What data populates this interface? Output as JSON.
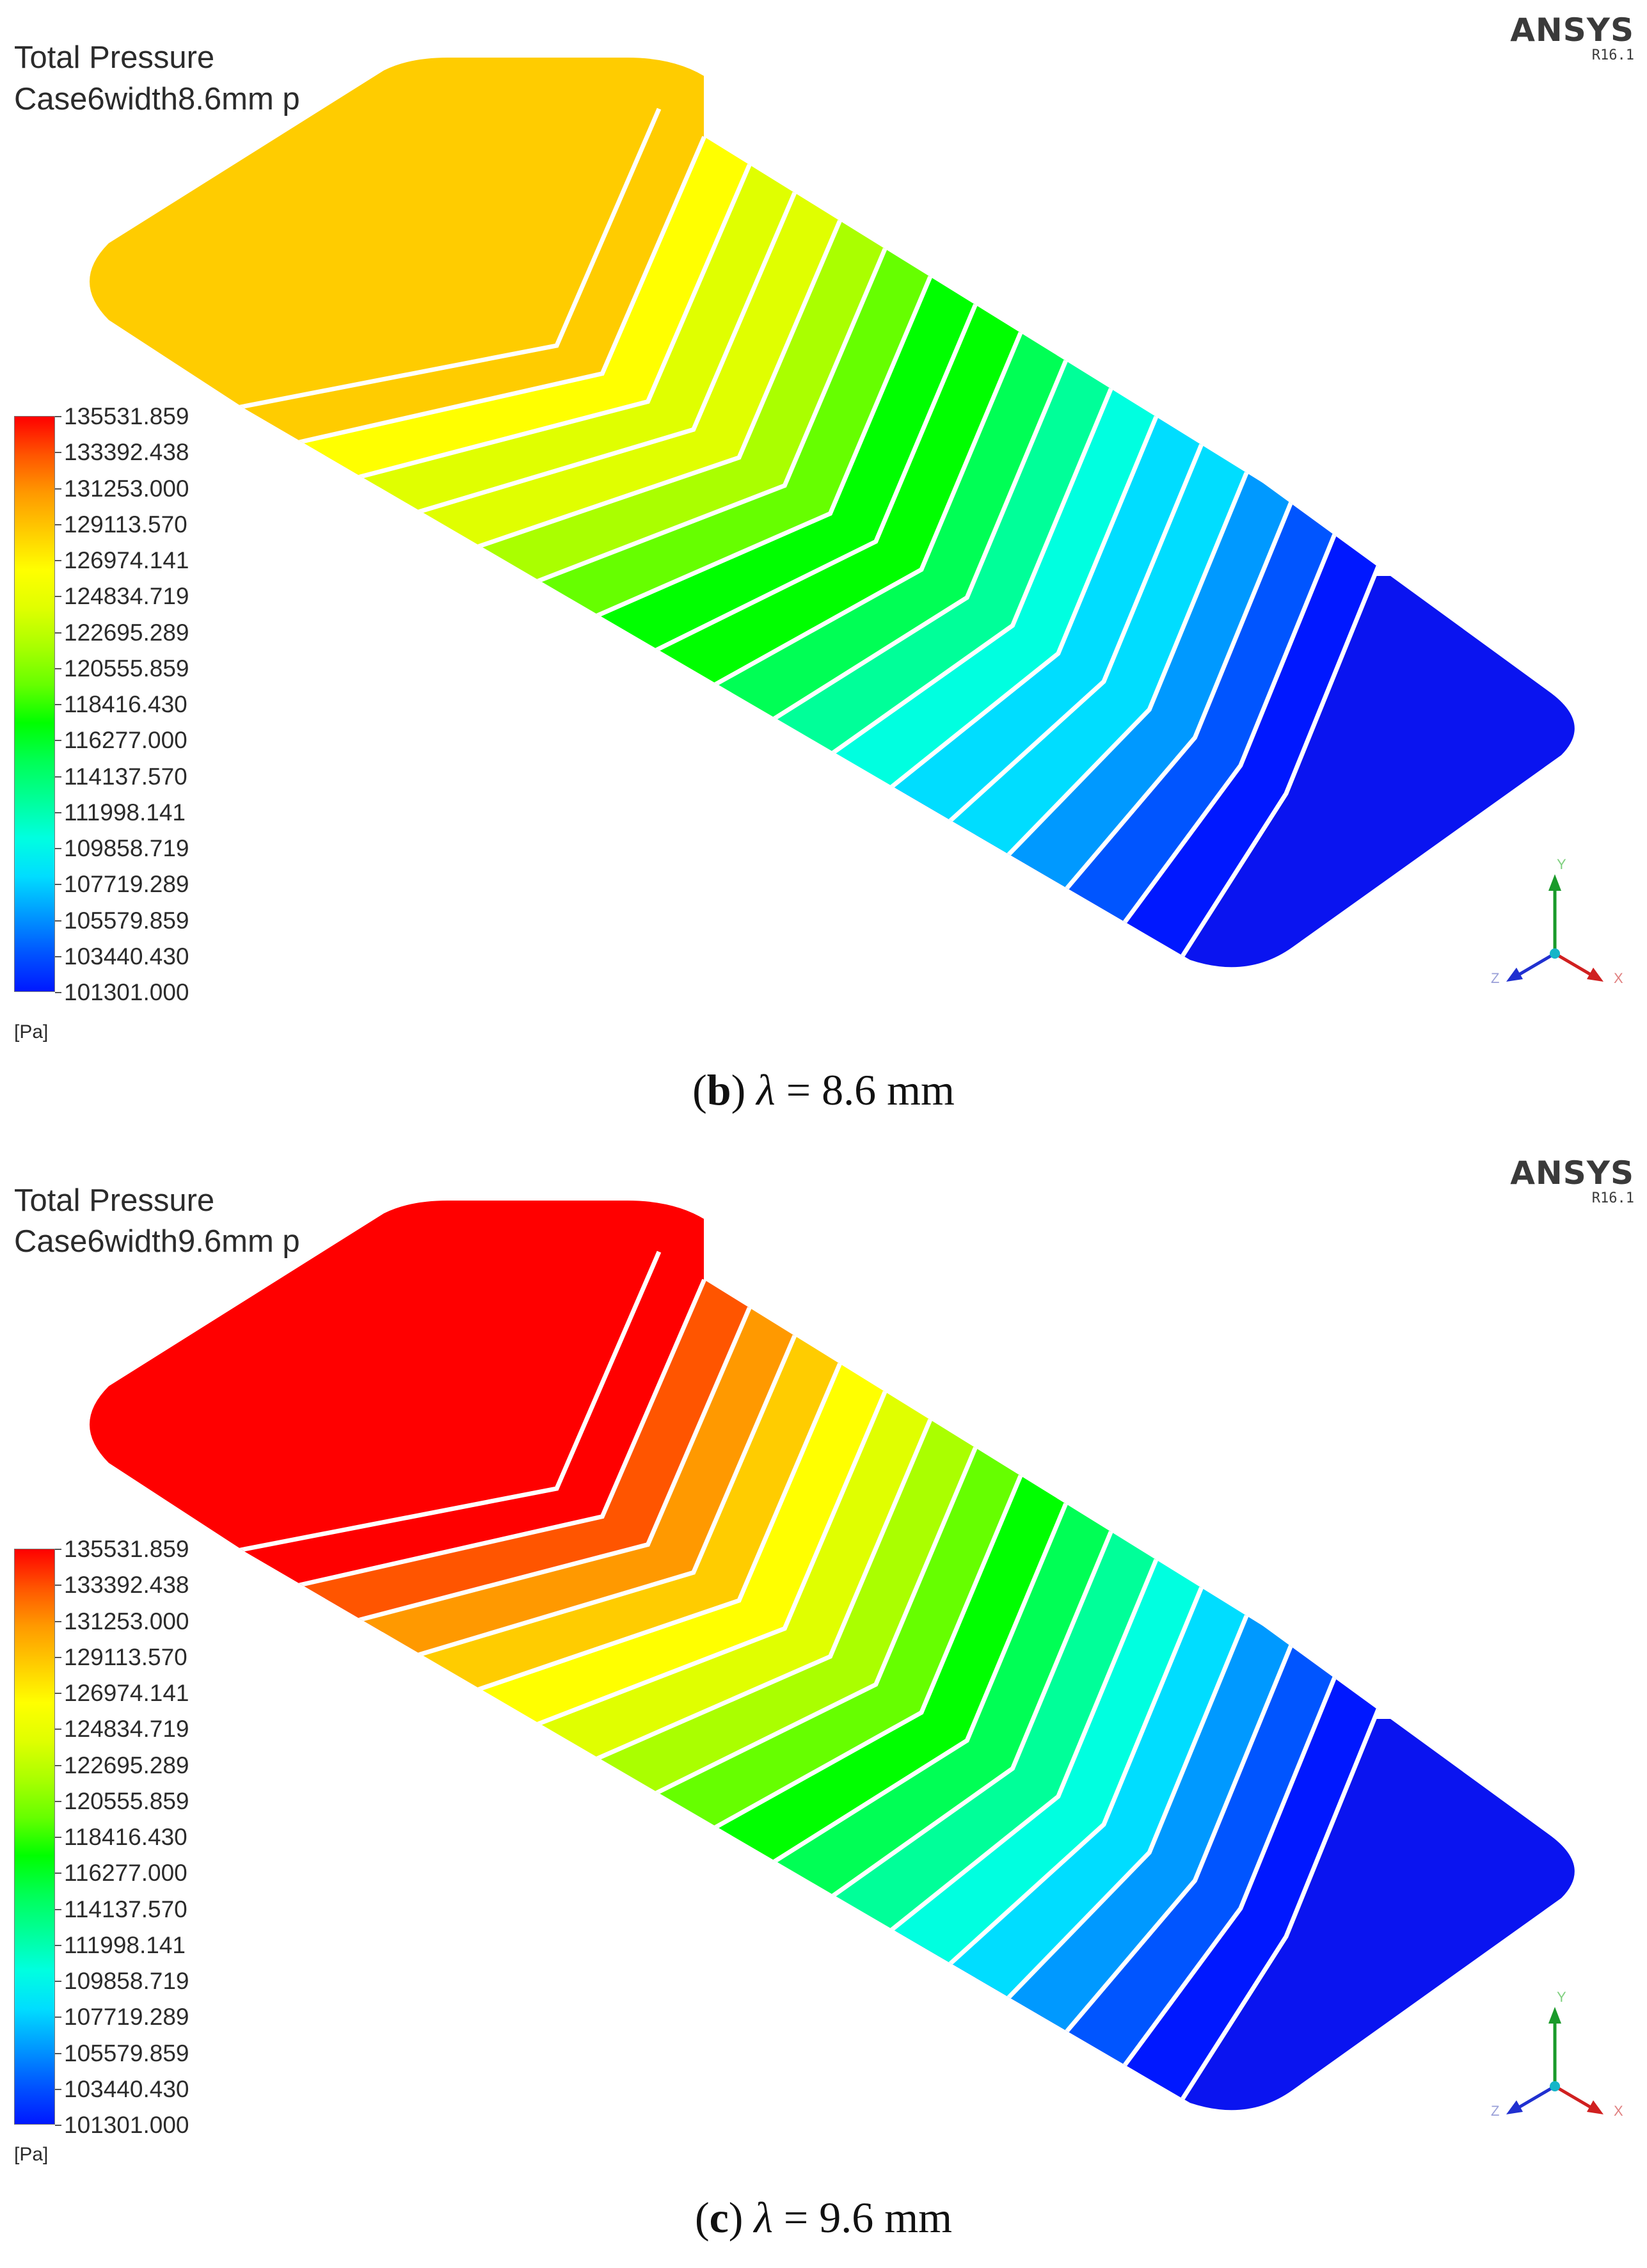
{
  "colors": {
    "scale": [
      "#0018ff",
      "#0055ff",
      "#0099ff",
      "#00ddff",
      "#00ffe0",
      "#00ff99",
      "#00ff55",
      "#00ff00",
      "#66ff00",
      "#aaff00",
      "#e0ff00",
      "#ffff00",
      "#ffcc00",
      "#ff9900",
      "#ff5500",
      "#ff0000"
    ],
    "plate_low": "#0a14f0",
    "wall": "#ffffff"
  },
  "legend": {
    "labels": [
      "135531.859",
      "133392.438",
      "131253.000",
      "129113.570",
      "126974.141",
      "124834.719",
      "122695.289",
      "120555.859",
      "118416.430",
      "116277.000",
      "114137.570",
      "111998.141",
      "109858.719",
      "107719.289",
      "105579.859",
      "103440.430",
      "101301.000"
    ],
    "unit": "[Pa]"
  },
  "panels": [
    {
      "variable": "Total Pressure",
      "case": "Case6width8.6mm p",
      "logo": {
        "brand": "ANSYS",
        "version": "R16.1"
      },
      "inlet_level": 0.82,
      "caption": {
        "letter": "b",
        "symbol": "λ",
        "rest": " = 8.6 mm"
      }
    },
    {
      "variable": "Total Pressure",
      "case": "Case6width9.6mm p",
      "logo": {
        "brand": "ANSYS",
        "version": "R16.1"
      },
      "inlet_level": 1.0,
      "caption": {
        "letter": "c",
        "symbol": "λ",
        "rest": " = 9.6 mm"
      }
    }
  ],
  "triad": {
    "x": "X",
    "y": "Y",
    "z": "Z"
  }
}
